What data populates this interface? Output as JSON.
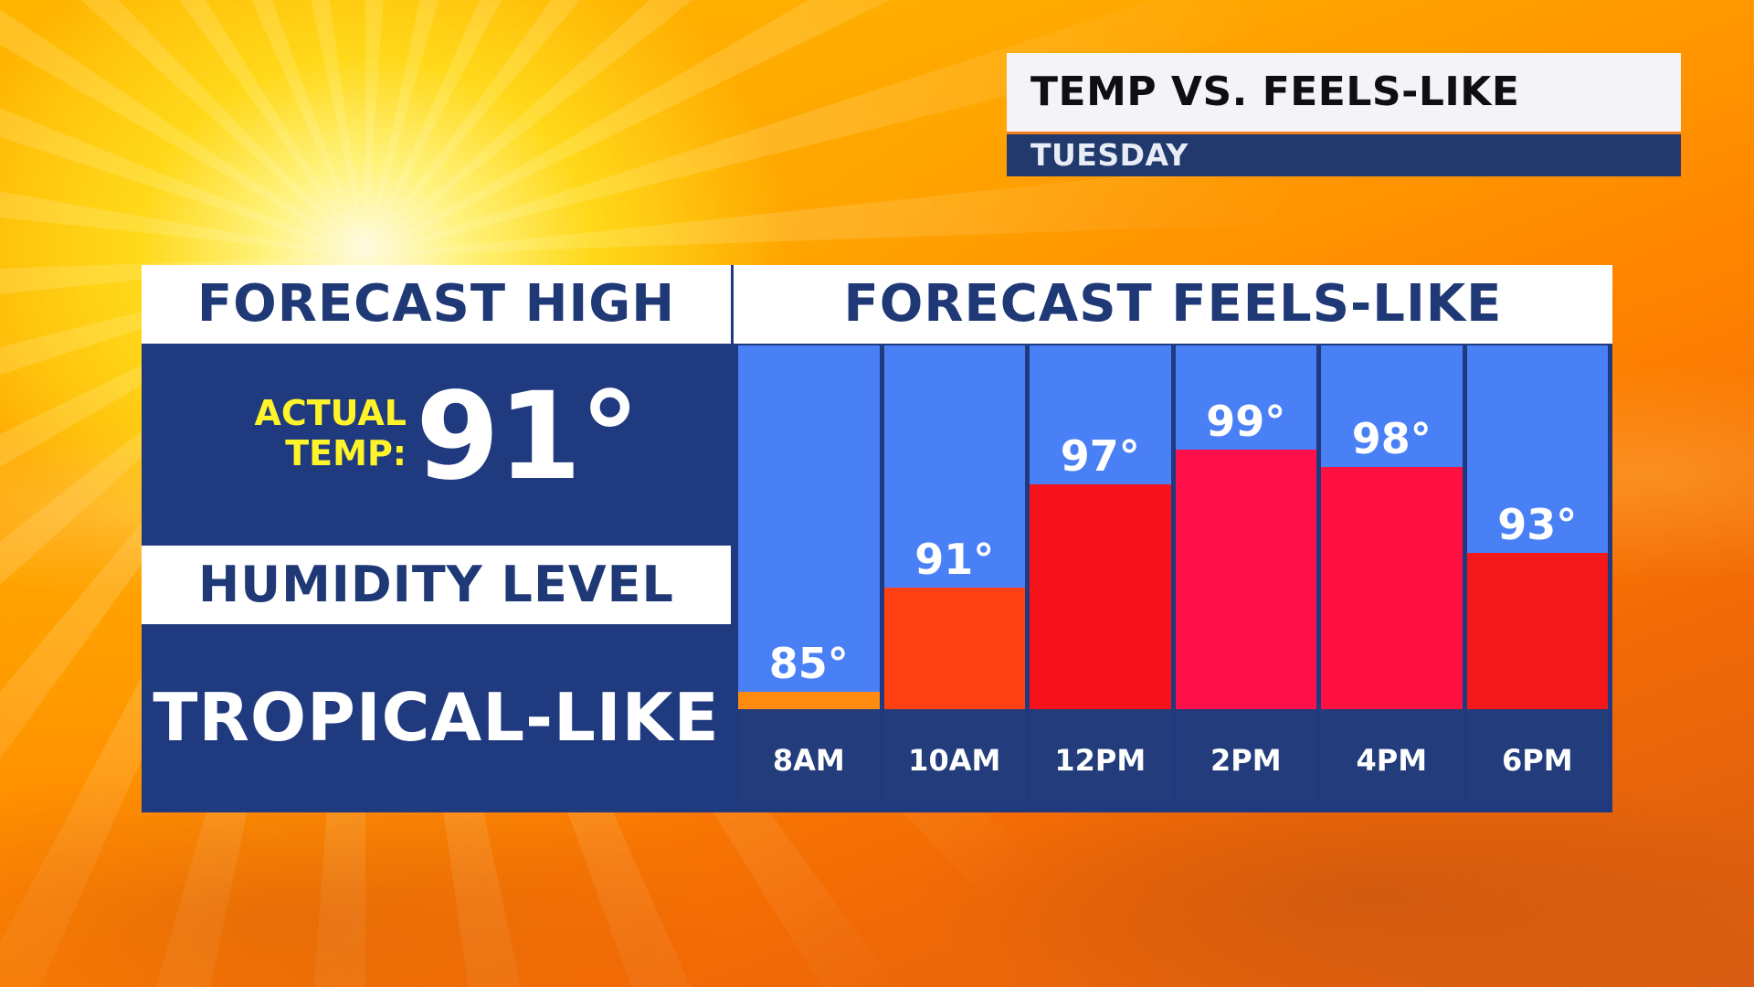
{
  "header": {
    "title": "TEMP VS. FEELS-LIKE",
    "day": "TUESDAY"
  },
  "left_panel": {
    "forecast_high_heading": "FORECAST HIGH",
    "actual_label_line1": "ACTUAL",
    "actual_label_line2": "TEMP:",
    "actual_value": "91°",
    "humidity_heading": "HUMIDITY LEVEL",
    "humidity_value": "TROPICAL-LIKE"
  },
  "colors": {
    "panel_navy": "#1f3a7e",
    "column_blue": "#4a80f5",
    "heading_text": "#1f3876",
    "actual_label_yellow": "#fff42a",
    "bar_colors": [
      "#ff8a10",
      "#ff4012",
      "#f5121a",
      "#ff104a",
      "#ff1040",
      "#f5181a"
    ]
  },
  "chart_data": {
    "type": "bar",
    "title": "FORECAST FEELS-LIKE",
    "categories": [
      "8AM",
      "10AM",
      "12PM",
      "2PM",
      "4PM",
      "6PM"
    ],
    "values": [
      85,
      91,
      97,
      99,
      98,
      93
    ],
    "value_labels": [
      "85°",
      "91°",
      "97°",
      "99°",
      "98°",
      "93°"
    ],
    "unit": "°",
    "ylim": [
      84,
      105
    ],
    "xlabel": "",
    "ylabel": "",
    "grid": false,
    "legend": "none"
  }
}
